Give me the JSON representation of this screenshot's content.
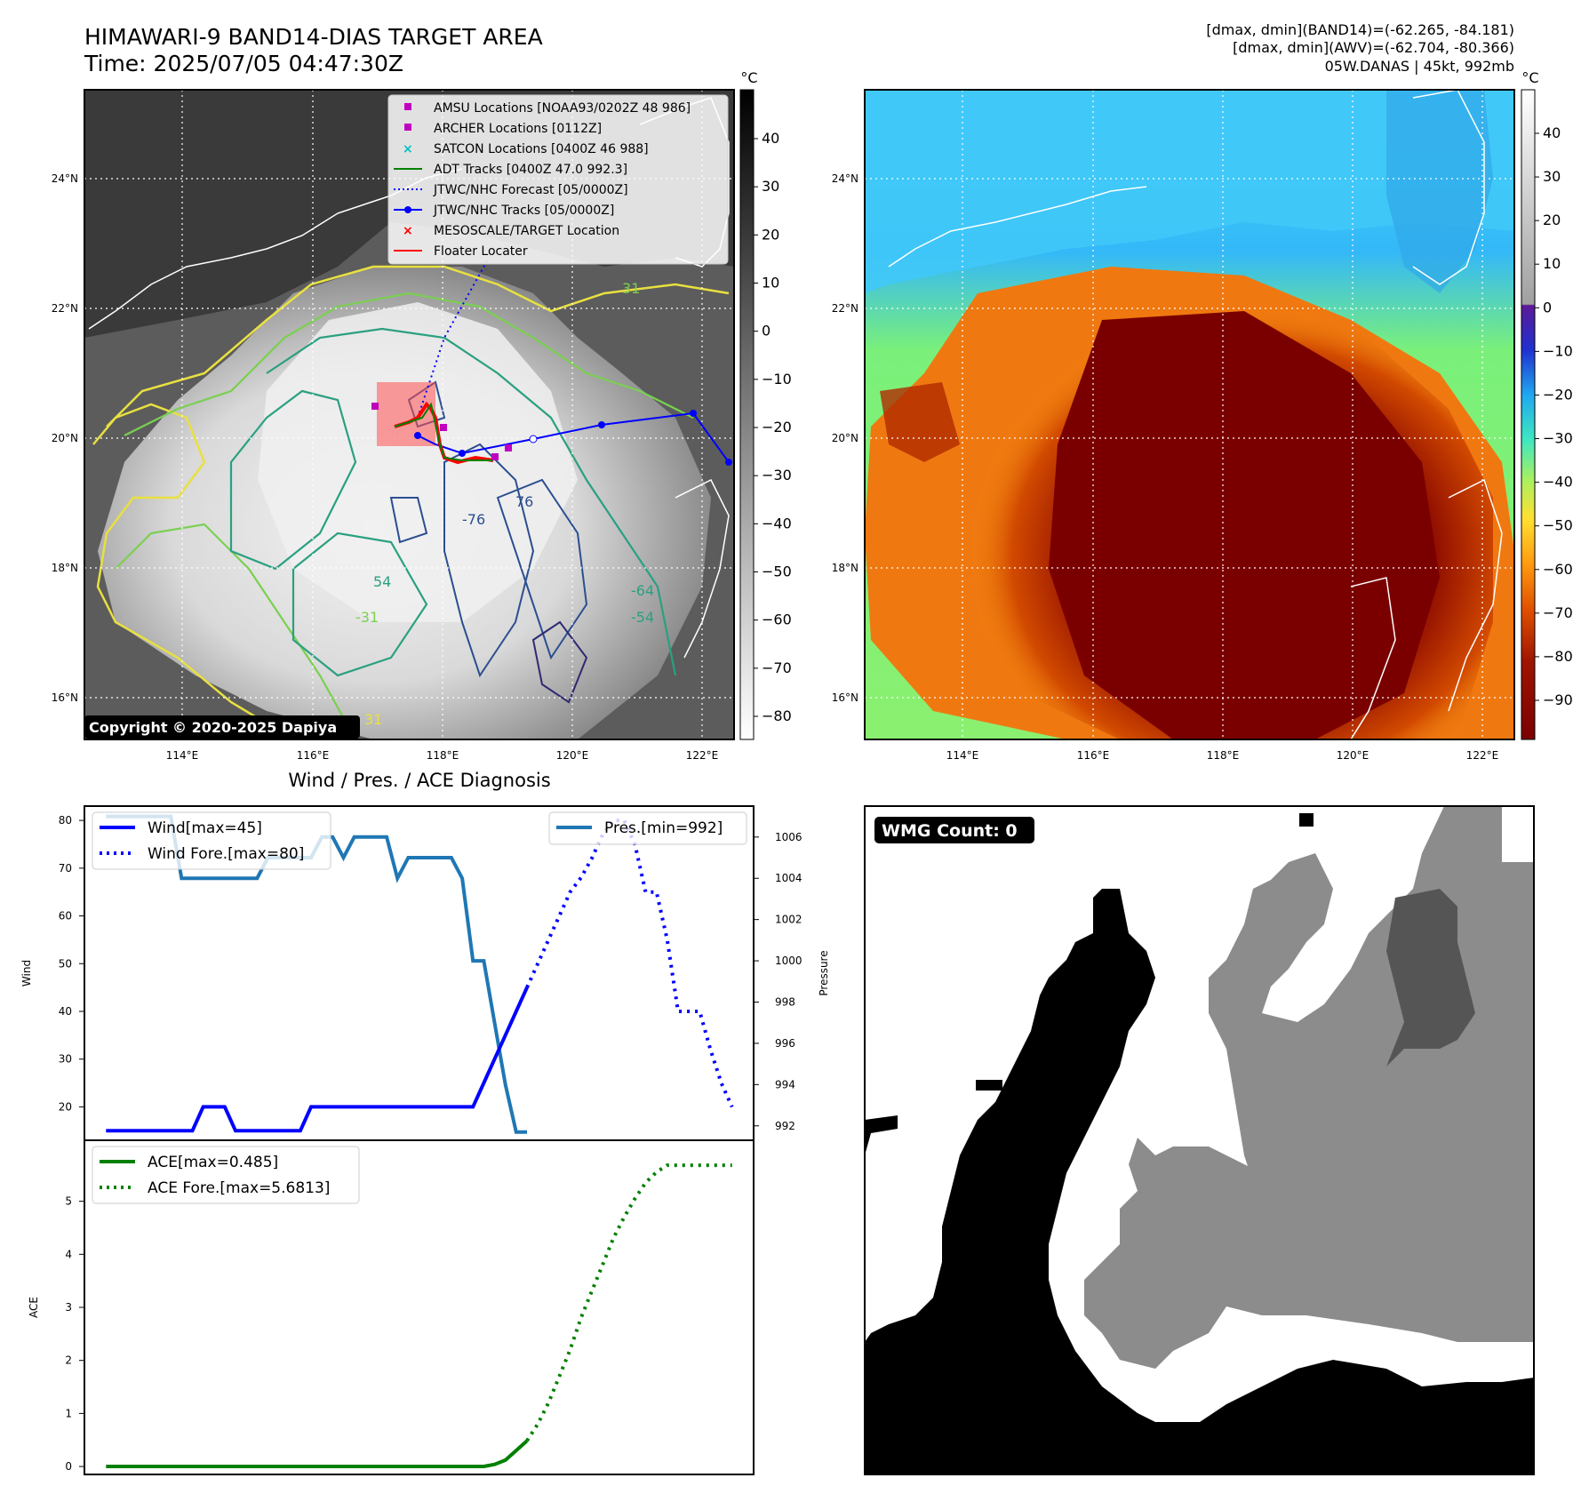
{
  "header": {
    "title_line1": "HIMAWARI-9 BAND14-DIAS TARGET AREA",
    "title_line2": "Time: 2025/07/05 04:47:30Z",
    "info_line1": "[dmax, dmin](BAND14)=(-62.265, -84.181)",
    "info_line2": "[dmax, dmin](AWV)=(-62.704, -80.366)",
    "info_line3": "05W.DANAS | 45kt, 992mb"
  },
  "map_axes": {
    "lon_ticks": [
      "114°E",
      "116°E",
      "118°E",
      "120°E",
      "122°E"
    ],
    "lat_ticks": [
      "24°N",
      "22°N",
      "20°N",
      "18°N",
      "16°N"
    ]
  },
  "ir_colorbar": {
    "unit": "°C",
    "ticks": [
      "40",
      "30",
      "20",
      "10",
      "0",
      "−10",
      "−20",
      "−30",
      "−40",
      "−50",
      "−60",
      "−70",
      "−80"
    ]
  },
  "awv_colorbar": {
    "unit": "°C",
    "ticks": [
      "40",
      "30",
      "20",
      "10",
      "0",
      "−10",
      "−20",
      "−30",
      "−40",
      "−50",
      "−60",
      "−70",
      "−80",
      "−90"
    ]
  },
  "legend": {
    "amsu": "AMSU Locations [NOAA93/0202Z 48 986]",
    "archer": "ARCHER Locations [0112Z]",
    "satcon": "SATCON Locations [0400Z 46 988]",
    "adt": "ADT Tracks [0400Z 47.0 992.3]",
    "jtwc_fore": "JTWC/NHC Forecast [05/0000Z]",
    "jtwc_track": "JTWC/NHC Tracks [05/0000Z]",
    "mesoscale": "MESOSCALE/TARGET Location",
    "floater": "Floater Locater"
  },
  "contour_labels": {
    "l31a": "-31",
    "l31b": "31",
    "l54a": "54",
    "l54b": "-54",
    "l64": "-64",
    "l76": "-76",
    "l76b": "76"
  },
  "copyright": "Copyright © 2020-2025 Dapiya",
  "wmg": {
    "label": "WMG Count: 0"
  },
  "diag": {
    "title": "Wind / Pres. / ACE Diagnosis",
    "wind_ylabel": "Wind",
    "pres_ylabel": "Pressure",
    "ace_ylabel": "ACE",
    "legend_wind": "Wind[max=45]",
    "legend_wind_fore": "Wind Fore.[max=80]",
    "legend_pres": "Pres.[min=992]",
    "legend_ace": "ACE[max=0.485]",
    "legend_ace_fore": "ACE Fore.[max=5.6813]"
  },
  "colors": {
    "wind": "#0000ff",
    "pressure": "#1f77b4",
    "ace": "#008000",
    "track": "#0000ff",
    "amsu": "#bf00bf",
    "satcon": "#00bfbf",
    "mesoscale": "#ff0000"
  },
  "chart_data": [
    {
      "type": "line",
      "title": "Wind / Pres. / ACE Diagnosis",
      "ylabel": "Wind",
      "ylim": [
        13,
        83
      ],
      "y_ticks": [
        20,
        30,
        40,
        50,
        60,
        70,
        80
      ],
      "series": [
        {
          "name": "Wind[max=45]",
          "style": "solid",
          "axis": "left",
          "x": [
            0,
            1,
            2,
            3,
            4,
            5,
            6,
            7,
            8,
            9,
            10,
            11,
            12,
            13,
            14,
            15,
            16,
            17,
            18,
            19,
            20,
            21,
            22,
            23,
            24,
            25,
            26,
            27,
            28,
            29,
            30,
            31,
            32,
            33,
            34,
            35,
            36,
            37,
            38,
            39
          ],
          "values": [
            15,
            15,
            15,
            15,
            15,
            15,
            15,
            15,
            15,
            20,
            20,
            20,
            15,
            15,
            15,
            15,
            15,
            15,
            15,
            20,
            20,
            20,
            20,
            20,
            20,
            20,
            20,
            20,
            20,
            20,
            20,
            20,
            20,
            20,
            20,
            25,
            30,
            35,
            40,
            45
          ]
        },
        {
          "name": "Wind Fore.[max=80]",
          "style": "dotted",
          "axis": "left",
          "x": [
            39,
            40,
            41,
            42,
            43,
            44,
            45,
            46,
            47,
            48,
            49,
            50,
            51,
            52,
            53,
            54,
            55,
            56,
            57,
            58
          ],
          "values": [
            45,
            50,
            55,
            60,
            65,
            68,
            72,
            77,
            80,
            80,
            75,
            65,
            65,
            55,
            40,
            40,
            40,
            32,
            25,
            20
          ]
        }
      ]
    },
    {
      "type": "line",
      "ylabel": "Pressure",
      "ylim": [
        991.3,
        1007.5
      ],
      "y_ticks": [
        992,
        994,
        996,
        998,
        1000,
        1002,
        1004,
        1006
      ],
      "series": [
        {
          "name": "Pres.[min=992]",
          "style": "solid",
          "axis": "right",
          "x": [
            0,
            1,
            2,
            3,
            4,
            5,
            6,
            7,
            8,
            9,
            10,
            11,
            12,
            13,
            14,
            15,
            16,
            17,
            18,
            19,
            20,
            21,
            22,
            23,
            24,
            25,
            26,
            27,
            28,
            29,
            30,
            31,
            32,
            33,
            34,
            35,
            36,
            37,
            38,
            39
          ],
          "values": [
            1007,
            1007,
            1007,
            1007,
            1007,
            1007,
            1007,
            1004,
            1004,
            1004,
            1004,
            1004,
            1004,
            1004,
            1004,
            1005,
            1005,
            1005,
            1005,
            1005,
            1006,
            1006,
            1005,
            1006,
            1006,
            1006,
            1006,
            1004,
            1005,
            1005,
            1005,
            1005,
            1005,
            1004,
            1000,
            1000,
            997,
            994,
            991.7,
            991.7
          ]
        }
      ]
    },
    {
      "type": "line",
      "ylabel": "ACE",
      "ylim": [
        -0.15,
        6.15
      ],
      "y_ticks": [
        0,
        1,
        2,
        3,
        4,
        5
      ],
      "series": [
        {
          "name": "ACE[max=0.485]",
          "style": "solid",
          "x": [
            0,
            4,
            8,
            12,
            16,
            20,
            24,
            28,
            32,
            34,
            35,
            36,
            37,
            38,
            39
          ],
          "values": [
            0,
            0,
            0,
            0,
            0,
            0,
            0,
            0,
            0,
            0,
            0,
            0.04,
            0.12,
            0.3,
            0.485
          ]
        },
        {
          "name": "ACE Fore.[max=5.6813]",
          "style": "dotted",
          "x": [
            39,
            40,
            41,
            42,
            43,
            44,
            45,
            46,
            47,
            48,
            49,
            50,
            51,
            52,
            53,
            54,
            55,
            56,
            57,
            58
          ],
          "values": [
            0.485,
            0.8,
            1.2,
            1.7,
            2.2,
            2.8,
            3.3,
            3.8,
            4.3,
            4.7,
            5.05,
            5.35,
            5.55,
            5.68,
            5.68,
            5.68,
            5.68,
            5.68,
            5.68,
            5.68
          ]
        }
      ]
    }
  ]
}
